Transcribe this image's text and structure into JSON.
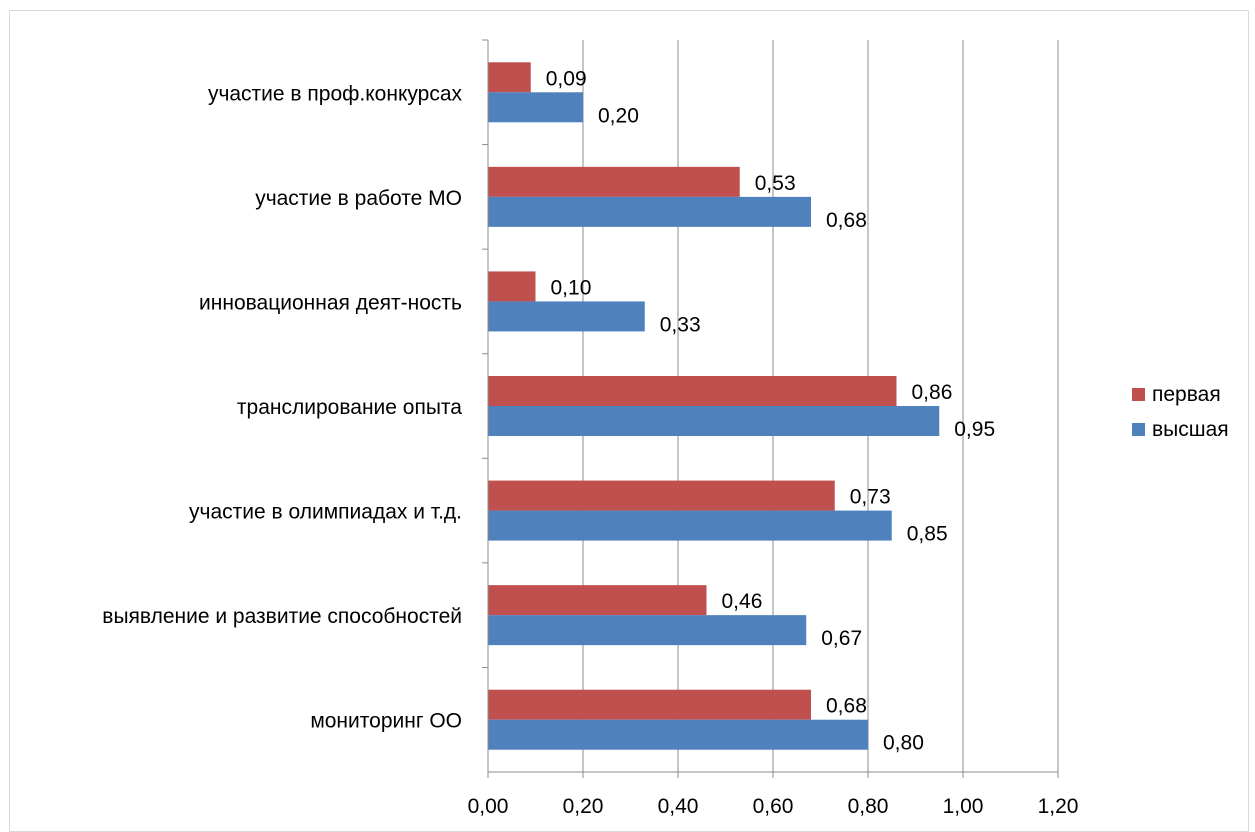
{
  "chart_data": {
    "type": "bar",
    "orientation": "horizontal",
    "categories": [
      "мониторинг ОО",
      "выявление и развитие способностей",
      "участие в олимпиадах и т.д.",
      "транслирование опыта",
      "инновационная деят-ность",
      "участие в работе МО",
      "участие в проф.конкурсах"
    ],
    "series": [
      {
        "name": "первая",
        "color": "#c0504d",
        "values": [
          0.68,
          0.46,
          0.73,
          0.86,
          0.1,
          0.53,
          0.09
        ],
        "labels": [
          "0,68",
          "0,46",
          "0,73",
          "0,86",
          "0,10",
          "0,53",
          "0,09"
        ]
      },
      {
        "name": "высшая",
        "color": "#4f81bd",
        "values": [
          0.8,
          0.67,
          0.85,
          0.95,
          0.33,
          0.68,
          0.2
        ],
        "labels": [
          "0,80",
          "0,67",
          "0,85",
          "0,95",
          "0,33",
          "0,68",
          "0,20"
        ]
      }
    ],
    "xlim": [
      0,
      1.2
    ],
    "xticks": [
      0,
      0.2,
      0.4,
      0.6,
      0.8,
      1.0,
      1.2
    ],
    "xtick_labels": [
      "0,00",
      "0,20",
      "0,40",
      "0,60",
      "0,80",
      "1,00",
      "1,20"
    ],
    "grid": "vertical",
    "legend_position": "right",
    "title": "",
    "xlabel": "",
    "ylabel": ""
  }
}
